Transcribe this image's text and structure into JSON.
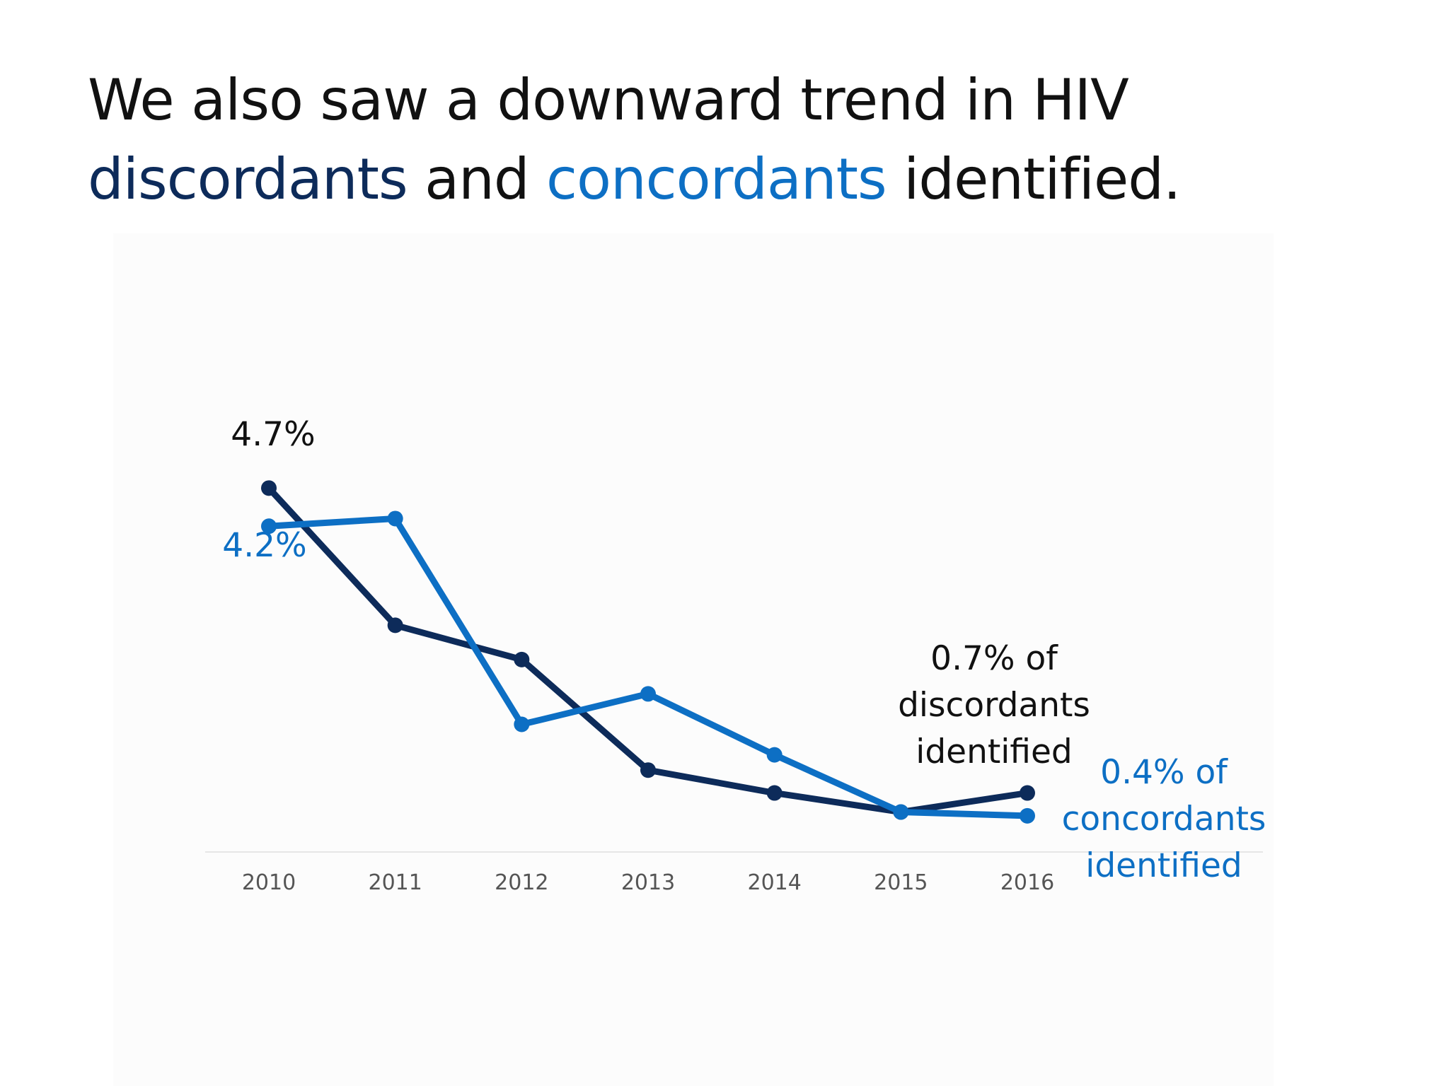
{
  "title": {
    "line1": "We also saw a downward trend in HIV",
    "word_discordants": "discordants",
    "word_and": " and ",
    "word_concordants": "concordants",
    "word_tail": " identified."
  },
  "colors": {
    "discordants": "#0d2b5a",
    "concordants": "#0d6fc4",
    "title_text": "#111111",
    "axis": "#e6e6e6",
    "tick_text": "#555555"
  },
  "chart_data": {
    "type": "line",
    "categories": [
      "2010",
      "2011",
      "2012",
      "2013",
      "2014",
      "2015",
      "2016"
    ],
    "series": [
      {
        "key": "discordants",
        "values": [
          4.7,
          2.9,
          2.45,
          1.0,
          0.7,
          0.45,
          0.7
        ]
      },
      {
        "key": "concordants",
        "values": [
          4.2,
          4.3,
          1.6,
          2.0,
          1.2,
          0.45,
          0.4
        ]
      }
    ],
    "ylim": [
      0,
      5
    ],
    "grid": false,
    "legend": "none",
    "xlabel": "",
    "ylabel": "",
    "annotations": [
      {
        "series": "discordants",
        "point": 0,
        "lines": [
          "4.7%"
        ]
      },
      {
        "series": "concordants",
        "point": 0,
        "lines": [
          "4.2%"
        ]
      },
      {
        "series": "discordants",
        "point": 6,
        "lines": [
          "0.7% of",
          "discordants",
          "identified"
        ]
      },
      {
        "series": "concordants",
        "point": 6,
        "lines": [
          "0.4% of",
          "concordants",
          "identified"
        ]
      }
    ]
  }
}
